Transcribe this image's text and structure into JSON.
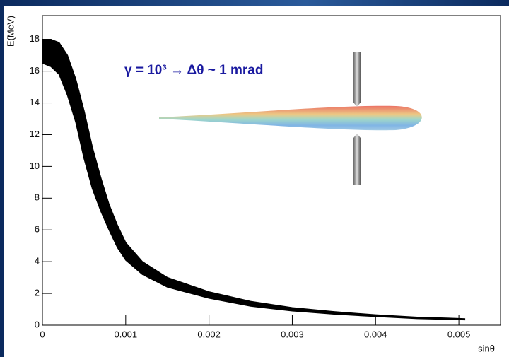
{
  "chart_data": {
    "type": "area",
    "annotation": "γ = 10³ → Δθ ~ 1 mrad",
    "x_label": "sinθ",
    "y_label": "E(MeV)",
    "x": [
      0,
      0.0001,
      0.0002,
      0.0003,
      0.0004,
      0.0005,
      0.0006,
      0.0007,
      0.0008,
      0.0009,
      0.001,
      0.0012,
      0.0015,
      0.002,
      0.0025,
      0.003,
      0.0035,
      0.004,
      0.0045,
      0.005,
      0.00507
    ],
    "upper": [
      18.0,
      18.0,
      17.8,
      17.0,
      15.5,
      13.5,
      11.2,
      9.3,
      7.6,
      6.3,
      5.2,
      4.0,
      3.0,
      2.1,
      1.5,
      1.1,
      0.85,
      0.65,
      0.5,
      0.42,
      0.4
    ],
    "lower": [
      16.5,
      16.3,
      15.8,
      14.5,
      12.8,
      10.5,
      8.6,
      7.2,
      6.0,
      4.9,
      4.1,
      3.2,
      2.4,
      1.7,
      1.2,
      0.9,
      0.7,
      0.55,
      0.42,
      0.35,
      0.34
    ],
    "color": "#000000",
    "xlim": [
      0,
      0.0055
    ],
    "ylim": [
      0,
      19.5
    ],
    "xticks": [
      0,
      0.001,
      0.002,
      0.003,
      0.004,
      0.005
    ],
    "yticks": [
      0,
      2,
      4,
      6,
      8,
      10,
      12,
      14,
      16,
      18
    ]
  }
}
